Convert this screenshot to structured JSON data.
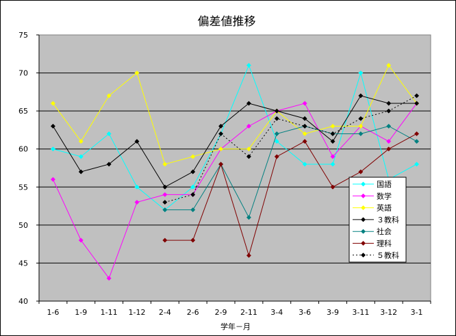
{
  "chart_data": {
    "type": "line",
    "title": "偏差値推移",
    "xlabel": "学年－月",
    "ylabel": "",
    "ylim": [
      40,
      75
    ],
    "yticks": [
      40,
      45,
      50,
      55,
      60,
      65,
      70,
      75
    ],
    "grid": true,
    "legend_position": "right",
    "plot_background": "#c0c0c0",
    "categories": [
      "1-6",
      "1-9",
      "1-11",
      "1-12",
      "2-4",
      "2-6",
      "2-9",
      "2-11",
      "3-4",
      "3-6",
      "3-9",
      "3-11",
      "3-12",
      "3-1"
    ],
    "series": [
      {
        "name": "国語",
        "color": "#00ffff",
        "marker": "diamond",
        "dash": false,
        "values": [
          60,
          59,
          62,
          55,
          52,
          55,
          62,
          71,
          61,
          58,
          58,
          70,
          56,
          58
        ]
      },
      {
        "name": "数学",
        "color": "#ff00ff",
        "marker": "diamond",
        "dash": false,
        "values": [
          56,
          48,
          43,
          53,
          54,
          54,
          60,
          63,
          65,
          66,
          59,
          63,
          61,
          66
        ]
      },
      {
        "name": "英語",
        "color": "#ffff00",
        "marker": "diamond",
        "dash": false,
        "values": [
          66,
          61,
          67,
          70,
          58,
          59,
          60,
          60,
          65,
          62,
          63,
          63,
          71,
          66
        ]
      },
      {
        "name": "３教科",
        "color": "#000000",
        "marker": "diamond",
        "dash": false,
        "values": [
          63,
          57,
          58,
          61,
          55,
          57,
          63,
          66,
          65,
          64,
          61,
          67,
          66,
          66
        ]
      },
      {
        "name": "社会",
        "color": "#008080",
        "marker": "diamond",
        "dash": false,
        "values": [
          null,
          null,
          null,
          null,
          52,
          52,
          58,
          51,
          62,
          63,
          62,
          62,
          63,
          61
        ]
      },
      {
        "name": "理科",
        "color": "#800000",
        "marker": "diamond",
        "dash": false,
        "values": [
          null,
          null,
          null,
          null,
          48,
          48,
          58,
          46,
          59,
          61,
          55,
          57,
          60,
          62
        ]
      },
      {
        "name": "５教科",
        "color": "#000000",
        "marker": "diamond",
        "dash": true,
        "values": [
          null,
          null,
          null,
          null,
          53,
          54,
          62,
          59,
          64,
          63,
          62,
          64,
          65,
          67
        ]
      }
    ]
  }
}
